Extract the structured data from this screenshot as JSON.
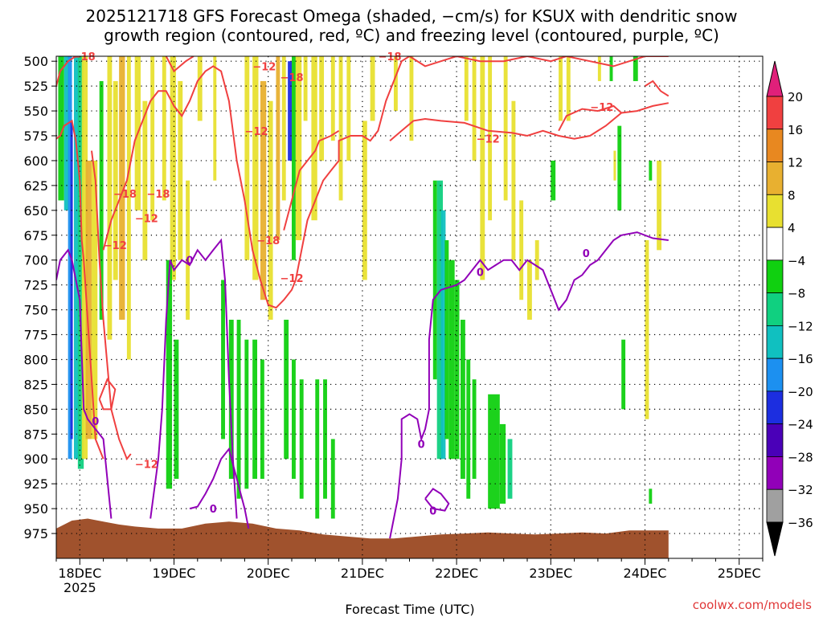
{
  "chart_data": {
    "type": "heatmap",
    "title_line1": "2025121718 GFS Forecast Omega (shaded, −cm/s) for KSUX with dendritic snow",
    "title_line2": "growth region (contoured, red, ºC) and freezing level (contoured, purple, ºC)",
    "xlabel": "Forecast Time (UTC)",
    "ylabel": "",
    "x_ticks": [
      "18DEC",
      "19DEC",
      "20DEC",
      "21DEC",
      "22DEC",
      "23DEC",
      "24DEC",
      "25DEC"
    ],
    "x_year": "2025",
    "xlim": [
      "2025-12-17T18",
      "2025-12-25T06"
    ],
    "y_ticks": [
      500,
      525,
      550,
      575,
      600,
      625,
      650,
      675,
      700,
      725,
      750,
      775,
      800,
      825,
      850,
      875,
      900,
      925,
      950,
      975
    ],
    "ylim": [
      1000,
      495
    ],
    "grid": true,
    "colorbar": {
      "levels": [
        -36,
        -32,
        -28,
        -24,
        -20,
        -16,
        -12,
        -8,
        -4,
        4,
        8,
        12,
        16,
        20
      ],
      "colors": [
        "#000000",
        "#a0a0a0",
        "#9100b8",
        "#4a00b8",
        "#1c2ee0",
        "#1c90f0",
        "#10c0c0",
        "#10d080",
        "#10d010",
        "#ffffff",
        "#e8e030",
        "#e8b030",
        "#e88820",
        "#f04040",
        "#e0207a"
      ]
    },
    "contour_labels": {
      "dgz": [
        "-18",
        "-12"
      ],
      "freezing": [
        "0"
      ]
    },
    "terrain_color": "#a0522d",
    "omega_color_up": "#10d010",
    "omega_color_down": "#e8e030",
    "dgz_color": "#f04040",
    "freezing_color": "#9100b8"
  },
  "credit": "coolwx.com/models"
}
